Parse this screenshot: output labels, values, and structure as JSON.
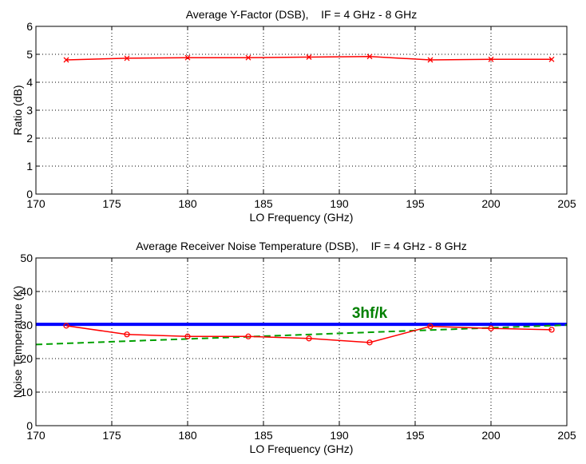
{
  "chart_data": [
    {
      "type": "line",
      "title": "Average Y-Factor (DSB),    IF = 4 GHz - 8 GHz",
      "xlabel": "LO Frequency (GHz)",
      "ylabel": "Ratio (dB)",
      "xlim": [
        170,
        205
      ],
      "ylim": [
        0,
        6
      ],
      "xticks": [
        "170",
        "175",
        "180",
        "185",
        "190",
        "195",
        "200",
        "205"
      ],
      "yticks": [
        "0",
        "1",
        "2",
        "3",
        "4",
        "5",
        "6"
      ],
      "grid": true,
      "x": [
        172,
        176,
        180,
        184,
        188,
        192,
        196,
        200,
        204
      ],
      "series": [
        {
          "values": [
            4.8,
            4.86,
            4.88,
            4.88,
            4.9,
            4.92,
            4.8,
            4.82,
            4.82
          ],
          "color": "#ff0000",
          "marker": "x"
        }
      ]
    },
    {
      "type": "line",
      "title": "Average Receiver Noise Temperature (DSB),    IF = 4 GHz - 8 GHz",
      "xlabel": "LO Frequency (GHz)",
      "ylabel": "Noise Temperature (K)",
      "xlim": [
        170,
        205
      ],
      "ylim": [
        0,
        50
      ],
      "xticks": [
        "170",
        "175",
        "180",
        "185",
        "190",
        "195",
        "200",
        "205"
      ],
      "yticks": [
        "0",
        "10",
        "20",
        "30",
        "40",
        "50"
      ],
      "grid": true,
      "x": [
        172,
        176,
        180,
        184,
        188,
        192,
        196,
        200,
        204
      ],
      "series": [
        {
          "values": [
            29.8,
            27.2,
            26.6,
            26.6,
            26.0,
            24.8,
            29.6,
            29.0,
            28.6
          ],
          "color": "#ff0000",
          "marker": "o"
        }
      ],
      "reference_lines": [
        {
          "type": "horizontal",
          "y": 30.2,
          "color": "#0000ff",
          "style": "solid"
        },
        {
          "type": "linear",
          "points": [
            [
              170,
              24.2
            ],
            [
              205,
              30.0
            ]
          ],
          "color": "#00a000",
          "style": "dashed"
        }
      ],
      "annotation": {
        "text": "3hf/k",
        "x": 192,
        "y": 34.5,
        "color": "#008000"
      }
    }
  ]
}
